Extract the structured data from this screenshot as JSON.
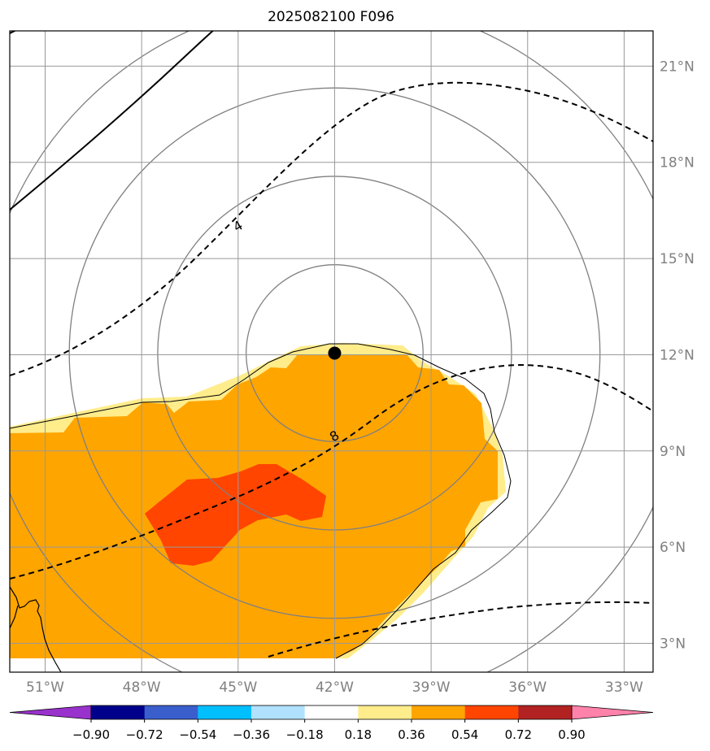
{
  "title": "2025082100 F096",
  "map": {
    "lon_range": [
      -52.1,
      -32.1
    ],
    "lat_range": [
      2.1,
      22.1
    ],
    "center_marker": {
      "lon": -42.0,
      "lat": 12.05
    },
    "range_rings_degrees": [
      2.75,
      5.5,
      8.25,
      11.0
    ],
    "lon_ticks": [
      {
        "value": -51,
        "label": "51°W"
      },
      {
        "value": -48,
        "label": "48°W"
      },
      {
        "value": -45,
        "label": "45°W"
      },
      {
        "value": -42,
        "label": "42°W"
      },
      {
        "value": -39,
        "label": "39°W"
      },
      {
        "value": -36,
        "label": "36°W"
      },
      {
        "value": -33,
        "label": "33°W"
      }
    ],
    "lat_ticks": [
      {
        "value": 3,
        "label": "3°N"
      },
      {
        "value": 6,
        "label": "6°N"
      },
      {
        "value": 9,
        "label": "9°N"
      },
      {
        "value": 12,
        "label": "12°N"
      },
      {
        "value": 15,
        "label": "15°N"
      },
      {
        "value": 18,
        "label": "18°N"
      },
      {
        "value": 21,
        "label": "21°N"
      }
    ],
    "contour_labels": [
      {
        "text": "4",
        "lon": -45.0,
        "lat": 16.0
      },
      {
        "text": "8",
        "lon": -42.0,
        "lat": 9.45
      }
    ]
  },
  "colorbar": {
    "levels": [
      -0.9,
      -0.72,
      -0.54,
      -0.36,
      -0.18,
      0.18,
      0.36,
      0.54,
      0.72,
      0.9
    ],
    "tick_labels": [
      "−0.90",
      "−0.72",
      "−0.54",
      "−0.36",
      "−0.18",
      "0.18",
      "0.36",
      "0.54",
      "0.72",
      "0.90"
    ],
    "colors": [
      "#9932cc",
      "#00008b",
      "#3a5fcd",
      "#00bfff",
      "#b0e2ff",
      "#ffffff",
      "#ffec8b",
      "#ffa500",
      "#ff4500",
      "#b22222",
      "#ff82ab"
    ]
  },
  "field_colors": {
    "light": "#ffec8b",
    "orange": "#ffa500",
    "red": "#ff4500"
  }
}
